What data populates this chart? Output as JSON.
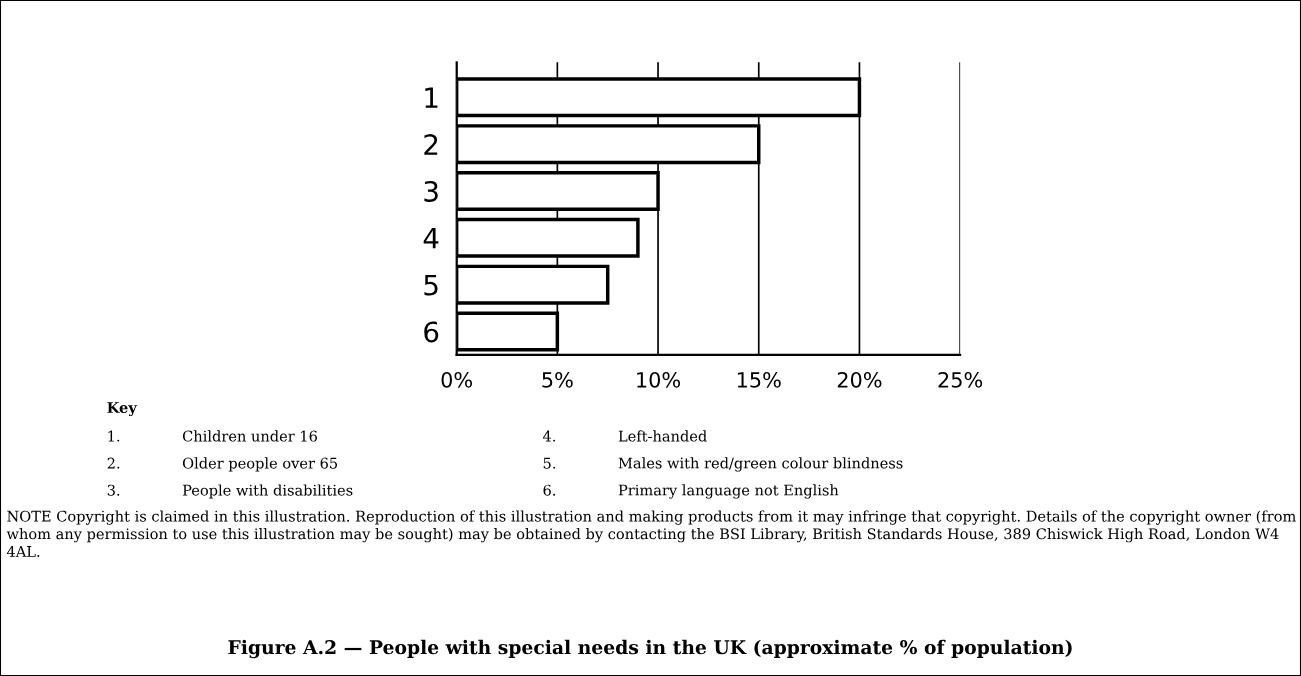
{
  "chart_data": {
    "type": "bar",
    "orientation": "horizontal",
    "title": "Figure A.2 — People with special needs in the UK (approximate % of population)",
    "categories": [
      "1",
      "2",
      "3",
      "4",
      "5",
      "6"
    ],
    "values": [
      20,
      15,
      10,
      9,
      7.5,
      5
    ],
    "color": "#ffffff",
    "xlim": [
      0,
      25
    ],
    "xticks": [
      {
        "value": 0,
        "label": "0%"
      },
      {
        "value": 5,
        "label": "5%"
      },
      {
        "value": 10,
        "label": "10%"
      },
      {
        "value": 15,
        "label": "15%"
      },
      {
        "value": 20,
        "label": "20%"
      },
      {
        "value": 25,
        "label": "25%"
      }
    ],
    "grid": "x",
    "annotations": [
      "Key",
      "1. Children under 16",
      "2. Older people over 65",
      "3. People with disabilities",
      "4. Left-handed",
      "5. Males with red/green colour blindness",
      "6. Primary language not English",
      "NOTE Copyright is claimed in this illustration. Reproduction of this illustration and making products from it may infringe that copyright. Details of the copyright owner (from whom any permission to use this illustration may be sought) may be obtained by contacting the BSI Library, British Standards House, 389 Chiswick High Road, London W4 4AL."
    ]
  }
}
